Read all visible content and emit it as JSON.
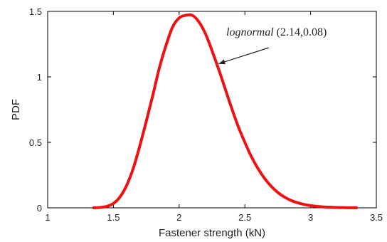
{
  "chart_data": {
    "type": "line",
    "xlabel": "Fastener strength (kN)",
    "ylabel": "PDF",
    "xlim": [
      1,
      3.5
    ],
    "ylim": [
      0,
      1.5
    ],
    "xticks": [
      "1",
      "1.5",
      "2",
      "2.5",
      "3",
      "3.5"
    ],
    "yticks": [
      "0",
      "0.5",
      "1",
      "1.5"
    ],
    "grid": false,
    "line_color": "#ee1111",
    "series": [
      {
        "x": [
          1.35,
          1.4,
          1.45,
          1.5,
          1.55,
          1.6,
          1.65,
          1.7,
          1.75,
          1.8,
          1.85,
          1.9,
          1.95,
          2.0,
          2.05,
          2.1,
          2.15,
          2.2,
          2.25,
          2.3,
          2.35,
          2.4,
          2.45,
          2.5,
          2.55,
          2.6,
          2.65,
          2.7,
          2.75,
          2.8,
          2.85,
          2.9,
          2.95,
          3.0,
          3.05,
          3.1,
          3.15,
          3.2,
          3.25,
          3.3,
          3.35
        ],
        "values": [
          0.0,
          0.003,
          0.011,
          0.033,
          0.083,
          0.17,
          0.298,
          0.47,
          0.66,
          0.86,
          1.07,
          1.24,
          1.38,
          1.45,
          1.47,
          1.47,
          1.42,
          1.33,
          1.2,
          1.06,
          0.91,
          0.76,
          0.62,
          0.5,
          0.39,
          0.3,
          0.225,
          0.165,
          0.118,
          0.083,
          0.057,
          0.039,
          0.026,
          0.017,
          0.011,
          0.007,
          0.005,
          0.003,
          0.002,
          0.001,
          0.001
        ]
      }
    ],
    "annotation": {
      "italic_text": "lognormal",
      "text": " (2.14,0.08)",
      "arrow_tip": {
        "x": 2.3,
        "y": 1.1
      }
    }
  }
}
